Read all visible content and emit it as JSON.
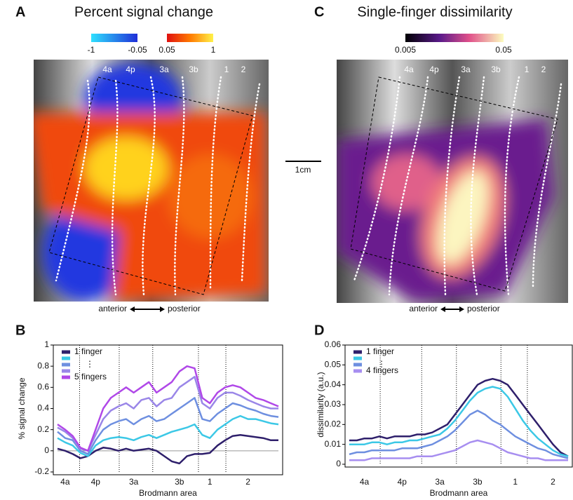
{
  "chart_data": [
    {
      "type": "map",
      "panel_label": "A",
      "title": "Percent signal change",
      "colorbar_ticks": [
        -1,
        -0.05,
        0.05,
        1
      ],
      "areas": [
        "4a",
        "4p",
        "3a",
        "3b",
        "1",
        "2"
      ],
      "direction": [
        "anterior",
        "posterior"
      ]
    },
    {
      "type": "map",
      "panel_label": "C",
      "title": "Single-finger dissimilarity",
      "colorbar_ticks": [
        0.005,
        0.05
      ],
      "areas": [
        "4a",
        "4p",
        "3a",
        "3b",
        "1",
        "2"
      ],
      "direction": [
        "anterior",
        "posterior"
      ]
    },
    {
      "type": "line",
      "panel_label": "B",
      "y_label": "% signal change",
      "x_label": "Brodmann area",
      "categories": [
        null,
        "4a",
        null,
        null,
        null,
        "4p",
        null,
        null,
        null,
        null,
        "3a",
        null,
        null,
        null,
        null,
        null,
        "3b",
        null,
        null,
        null,
        "1",
        null,
        null,
        null,
        null,
        "2",
        null,
        null,
        null,
        null
      ],
      "boundaries": [
        2.9,
        8.1,
        12.5,
        18.5,
        22.1
      ],
      "ylim": [
        -0.2,
        1
      ],
      "yticks": [
        -0.2,
        0,
        0.2,
        0.4,
        0.6,
        0.8,
        1
      ],
      "legend_ellipsis": "⋮",
      "series": [
        {
          "name": "1 finger",
          "color": "#2e1f6b",
          "values": [
            0.02,
            0.0,
            -0.03,
            -0.07,
            -0.05,
            0.0,
            0.03,
            0.02,
            0.0,
            0.02,
            0.0,
            0.01,
            0.02,
            0.0,
            -0.05,
            -0.1,
            -0.12,
            -0.05,
            -0.03,
            -0.03,
            -0.02,
            0.05,
            0.1,
            0.14,
            0.15,
            0.14,
            0.13,
            0.12,
            0.1,
            0.1
          ]
        },
        {
          "color": "#3cc8e6",
          "values": [
            0.12,
            0.08,
            0.05,
            -0.02,
            -0.05,
            0.05,
            0.1,
            0.12,
            0.13,
            0.12,
            0.1,
            0.13,
            0.15,
            0.12,
            0.15,
            0.18,
            0.2,
            0.22,
            0.25,
            0.15,
            0.12,
            0.2,
            0.25,
            0.3,
            0.33,
            0.3,
            0.3,
            0.28,
            0.26,
            0.25
          ]
        },
        {
          "color": "#6e8fe0",
          "values": [
            0.18,
            0.12,
            0.1,
            0.0,
            -0.03,
            0.1,
            0.2,
            0.25,
            0.28,
            0.3,
            0.25,
            0.3,
            0.33,
            0.28,
            0.3,
            0.35,
            0.4,
            0.45,
            0.5,
            0.3,
            0.28,
            0.35,
            0.4,
            0.45,
            0.43,
            0.4,
            0.38,
            0.35,
            0.33,
            0.32
          ]
        },
        {
          "color": "#9a86e8",
          "values": [
            0.22,
            0.18,
            0.12,
            0.02,
            0.0,
            0.15,
            0.3,
            0.38,
            0.42,
            0.45,
            0.4,
            0.48,
            0.5,
            0.42,
            0.48,
            0.5,
            0.6,
            0.65,
            0.7,
            0.45,
            0.4,
            0.5,
            0.55,
            0.55,
            0.52,
            0.48,
            0.45,
            0.42,
            0.4,
            0.4
          ]
        },
        {
          "name": "5 fingers",
          "color": "#b048e8",
          "values": [
            0.25,
            0.2,
            0.14,
            0.03,
            0.0,
            0.2,
            0.4,
            0.5,
            0.55,
            0.6,
            0.55,
            0.6,
            0.65,
            0.55,
            0.6,
            0.65,
            0.75,
            0.8,
            0.78,
            0.5,
            0.45,
            0.55,
            0.6,
            0.62,
            0.6,
            0.55,
            0.5,
            0.48,
            0.45,
            0.42
          ]
        }
      ]
    },
    {
      "type": "line",
      "panel_label": "D",
      "y_label": "dissimilarity (a.u.)",
      "x_label": "Brodmann area",
      "categories": [
        null,
        null,
        "4a",
        null,
        null,
        null,
        null,
        "4p",
        null,
        null,
        null,
        null,
        "3a",
        null,
        null,
        null,
        null,
        "3b",
        null,
        null,
        null,
        null,
        "1",
        null,
        null,
        null,
        null,
        "2",
        null,
        null
      ],
      "boundaries": [
        4.1,
        9.6,
        14.2,
        20.1,
        23.6
      ],
      "ylim": [
        0,
        0.06
      ],
      "yticks": [
        0,
        0.01,
        0.02,
        0.03,
        0.04,
        0.05,
        0.06
      ],
      "legend_ellipsis": "⋮",
      "series": [
        {
          "name": "1 finger",
          "color": "#2e1f6b",
          "values": [
            0.012,
            0.012,
            0.013,
            0.013,
            0.014,
            0.013,
            0.014,
            0.014,
            0.014,
            0.015,
            0.015,
            0.016,
            0.018,
            0.02,
            0.025,
            0.03,
            0.035,
            0.04,
            0.042,
            0.043,
            0.042,
            0.04,
            0.035,
            0.03,
            0.025,
            0.02,
            0.015,
            0.01,
            0.006,
            0.004
          ]
        },
        {
          "color": "#3cc8e6",
          "values": [
            0.01,
            0.01,
            0.01,
            0.011,
            0.011,
            0.01,
            0.011,
            0.011,
            0.012,
            0.012,
            0.013,
            0.014,
            0.015,
            0.018,
            0.022,
            0.027,
            0.032,
            0.036,
            0.038,
            0.039,
            0.038,
            0.034,
            0.028,
            0.022,
            0.017,
            0.013,
            0.01,
            0.007,
            0.005,
            0.004
          ]
        },
        {
          "color": "#6e8fe0",
          "values": [
            0.005,
            0.006,
            0.006,
            0.007,
            0.007,
            0.007,
            0.007,
            0.008,
            0.008,
            0.008,
            0.009,
            0.01,
            0.012,
            0.014,
            0.017,
            0.021,
            0.025,
            0.027,
            0.025,
            0.022,
            0.02,
            0.017,
            0.014,
            0.012,
            0.01,
            0.008,
            0.007,
            0.005,
            0.004,
            0.003
          ]
        },
        {
          "name": "4 fingers",
          "color": "#a78ef0",
          "values": [
            0.002,
            0.002,
            0.002,
            0.003,
            0.003,
            0.003,
            0.003,
            0.003,
            0.003,
            0.004,
            0.004,
            0.004,
            0.005,
            0.006,
            0.007,
            0.009,
            0.011,
            0.012,
            0.011,
            0.01,
            0.008,
            0.006,
            0.005,
            0.004,
            0.003,
            0.003,
            0.002,
            0.002,
            0.002,
            0.002
          ]
        }
      ]
    }
  ],
  "scale_bar": "1cm"
}
